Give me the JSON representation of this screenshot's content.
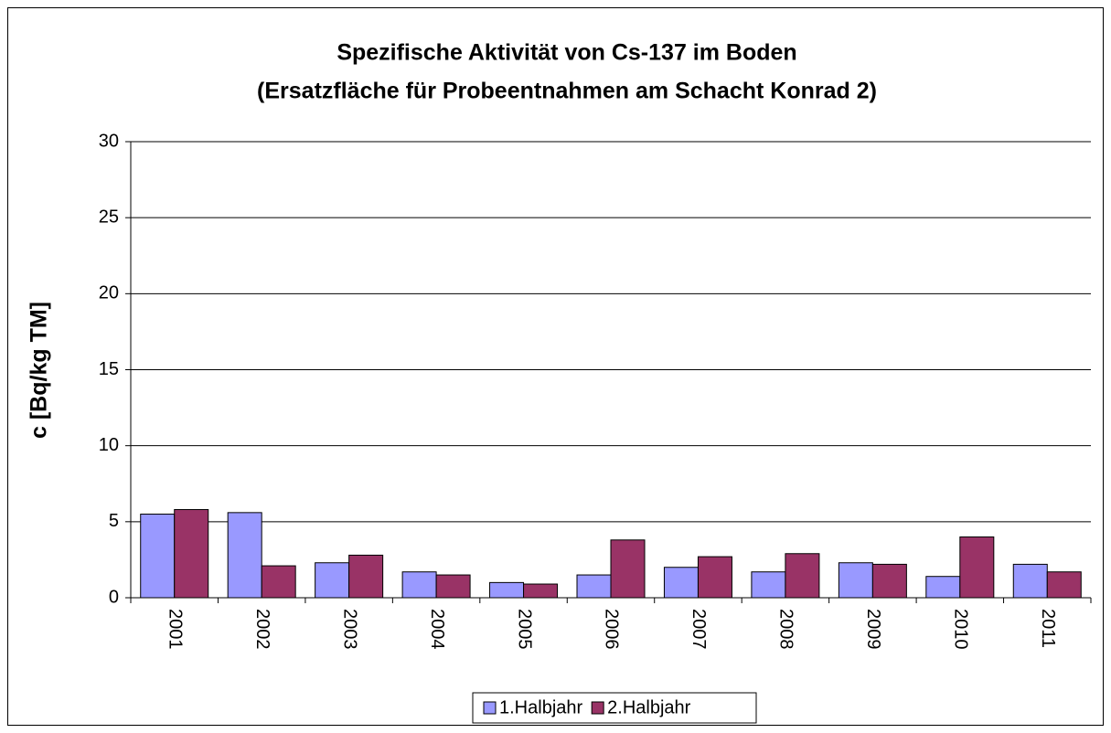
{
  "chart_data": {
    "type": "bar",
    "title": "Spezifische Aktivität von Cs-137 im Boden",
    "subtitle": "(Ersatzfläche für Probeentnahmen am Schacht Konrad 2)",
    "y_label": "c [Bq/kg TM]",
    "categories": [
      "2001",
      "2002",
      "2003",
      "2004",
      "2005",
      "2006",
      "2007",
      "2008",
      "2009",
      "2010",
      "2011"
    ],
    "series": [
      {
        "name": "1.Halbjahr",
        "color": "#9999ff",
        "values": [
          5.5,
          5.6,
          2.3,
          1.7,
          1.0,
          1.5,
          2.0,
          1.7,
          2.3,
          1.4,
          2.2
        ]
      },
      {
        "name": "2.Halbjahr",
        "color": "#993366",
        "values": [
          5.8,
          2.1,
          2.8,
          1.5,
          0.9,
          3.8,
          2.7,
          2.9,
          2.2,
          4.0,
          1.7
        ]
      }
    ],
    "ylim": [
      0,
      30
    ],
    "yticks": [
      0,
      5,
      10,
      15,
      20,
      25,
      30
    ],
    "grid": true,
    "legend": "bottom"
  }
}
